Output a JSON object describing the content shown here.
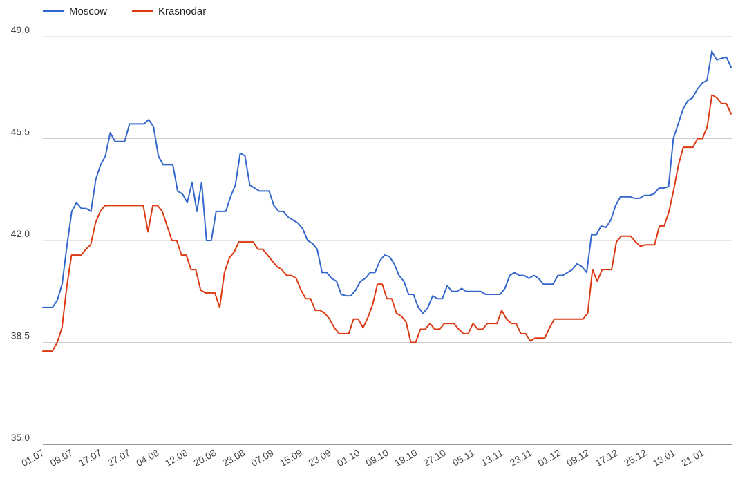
{
  "chart_data": {
    "type": "line",
    "title": "",
    "xlabel": "",
    "ylabel": "",
    "ylim": [
      35.0,
      49.0
    ],
    "yticks": [
      "35,0",
      "38,5",
      "42,0",
      "45,5",
      "49,0"
    ],
    "ytick_values": [
      35.0,
      38.5,
      42.0,
      45.5,
      49.0
    ],
    "grid": true,
    "legend_position": "top-left",
    "x_tick_labels": [
      "01.07",
      "09.07",
      "17.07",
      "27.07",
      "04.08",
      "12.08",
      "20.08",
      "28.08",
      "07.09",
      "15.09",
      "23.09",
      "01.10",
      "09.10",
      "19.10",
      "27.10",
      "05.11",
      "13.11",
      "23.11",
      "01.12",
      "09.12",
      "17.12",
      "25.12",
      "13.01",
      "21.01"
    ],
    "series": [
      {
        "name": "Moscow",
        "color": "#3366cc",
        "values": [
          39.7,
          39.7,
          39.7,
          39.95,
          40.5,
          41.8,
          43.0,
          43.3,
          43.1,
          43.1,
          43.0,
          44.1,
          44.6,
          44.9,
          45.7,
          45.4,
          45.4,
          45.4,
          46.0,
          46.0,
          46.0,
          46.0,
          46.15,
          45.9,
          44.9,
          44.6,
          44.6,
          44.6,
          43.7,
          43.6,
          43.3,
          44.0,
          43.0,
          44.0,
          42.0,
          42.0,
          43.0,
          43.0,
          43.0,
          43.5,
          43.9,
          45.0,
          44.9,
          43.9,
          43.8,
          43.7,
          43.7,
          43.7,
          43.2,
          43.0,
          43.0,
          42.8,
          42.7,
          42.6,
          42.4,
          42.0,
          41.9,
          41.7,
          40.9,
          40.9,
          40.7,
          40.6,
          40.15,
          40.1,
          40.1,
          40.3,
          40.6,
          40.7,
          40.9,
          40.9,
          41.3,
          41.5,
          41.45,
          41.2,
          40.8,
          40.6,
          40.15,
          40.15,
          39.7,
          39.5,
          39.7,
          40.1,
          40.0,
          40.0,
          40.45,
          40.25,
          40.25,
          40.35,
          40.25,
          40.25,
          40.25,
          40.25,
          40.15,
          40.15,
          40.15,
          40.15,
          40.35,
          40.8,
          40.9,
          40.8,
          40.8,
          40.7,
          40.8,
          40.7,
          40.5,
          40.5,
          40.5,
          40.8,
          40.8,
          40.9,
          41.0,
          41.2,
          41.1,
          40.9,
          42.2,
          42.2,
          42.5,
          42.45,
          42.7,
          43.2,
          43.5,
          43.5,
          43.5,
          43.45,
          43.45,
          43.55,
          43.55,
          43.6,
          43.8,
          43.8,
          43.85,
          45.5,
          46.0,
          46.5,
          46.8,
          46.9,
          47.2,
          47.4,
          47.5,
          48.5,
          48.2,
          48.25,
          48.3,
          47.95
        ]
      },
      {
        "name": "Krasnodar",
        "color": "#dc3912",
        "values": [
          38.2,
          38.2,
          38.2,
          38.5,
          39.0,
          40.4,
          41.5,
          41.5,
          41.5,
          41.7,
          41.85,
          42.6,
          43.0,
          43.2,
          43.2,
          43.2,
          43.2,
          43.2,
          43.2,
          43.2,
          43.2,
          43.2,
          42.3,
          43.2,
          43.2,
          43.0,
          42.5,
          42.0,
          42.0,
          41.5,
          41.5,
          41.0,
          41.0,
          40.3,
          40.2,
          40.2,
          40.2,
          39.7,
          40.9,
          41.4,
          41.6,
          41.95,
          41.95,
          41.95,
          41.95,
          41.7,
          41.7,
          41.5,
          41.3,
          41.1,
          41.0,
          40.8,
          40.8,
          40.7,
          40.3,
          40.0,
          40.0,
          39.6,
          39.6,
          39.5,
          39.3,
          39.0,
          38.8,
          38.8,
          38.8,
          39.3,
          39.3,
          39.0,
          39.35,
          39.8,
          40.5,
          40.5,
          40.0,
          40.0,
          39.5,
          39.4,
          39.2,
          38.5,
          38.5,
          38.95,
          38.95,
          39.15,
          38.95,
          38.95,
          39.15,
          39.15,
          39.15,
          38.95,
          38.8,
          38.8,
          39.15,
          38.95,
          38.95,
          39.15,
          39.15,
          39.15,
          39.6,
          39.3,
          39.15,
          39.15,
          38.8,
          38.8,
          38.55,
          38.65,
          38.65,
          38.65,
          39.0,
          39.3,
          39.3,
          39.3,
          39.3,
          39.3,
          39.3,
          39.3,
          39.5,
          41.0,
          40.6,
          41.0,
          41.0,
          41.0,
          41.95,
          42.15,
          42.15,
          42.15,
          41.95,
          41.8,
          41.85,
          41.85,
          41.85,
          42.5,
          42.5,
          43.0,
          43.75,
          44.6,
          45.2,
          45.2,
          45.2,
          45.5,
          45.5,
          45.9,
          47.0,
          46.9,
          46.7,
          46.7,
          46.35
        ]
      }
    ]
  }
}
